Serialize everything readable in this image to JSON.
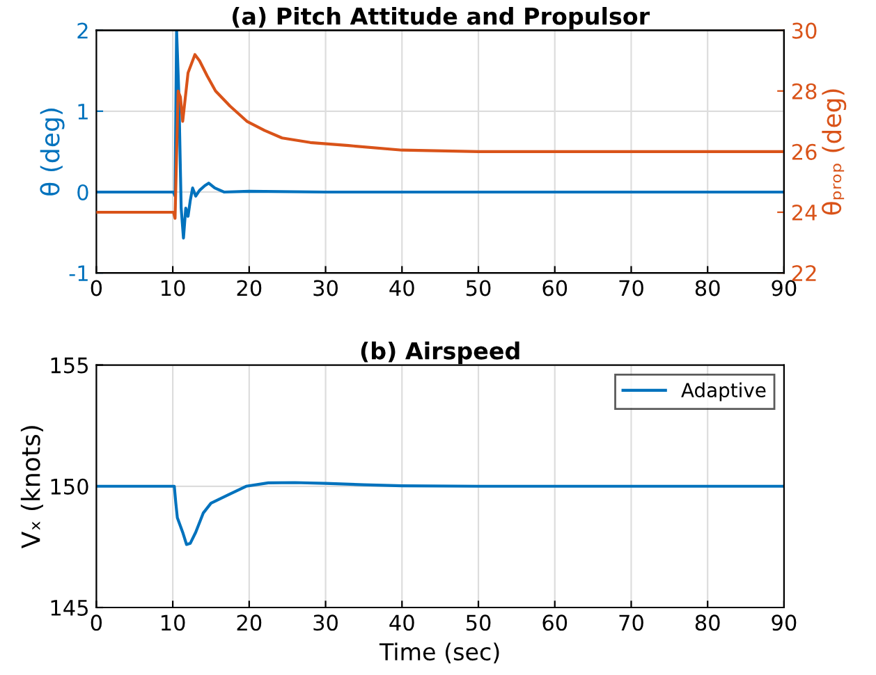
{
  "chart_data": [
    {
      "type": "line",
      "title": "(a) Pitch Attitude and Propulsor",
      "ylabel": "θ (deg)",
      "y2label": "θₚᵣₒₚ (deg)",
      "xlim": [
        0,
        90
      ],
      "xticks": [
        0,
        10,
        20,
        30,
        40,
        50,
        60,
        70,
        80,
        90
      ],
      "ylim": [
        -1,
        2
      ],
      "yticks": [
        -1,
        0,
        1,
        2
      ],
      "y2lim": [
        22,
        30
      ],
      "y2ticks": [
        22,
        24,
        26,
        28,
        30
      ],
      "grid": true,
      "legend": false,
      "series": [
        {
          "color": "#0072bd",
          "x": [
            0,
            10.1,
            10.3,
            10.5,
            10.8,
            11.1,
            11.4,
            11.7,
            12.0,
            12.3,
            12.6,
            13.0,
            13.5,
            14.2,
            14.7,
            15.5,
            16.7,
            20,
            30,
            90
          ],
          "values": [
            0,
            0,
            -0.05,
            2.0,
            1.2,
            -0.2,
            -0.57,
            -0.2,
            -0.3,
            -0.1,
            0.05,
            -0.05,
            0.02,
            0.08,
            0.11,
            0.05,
            0,
            0.01,
            0,
            0
          ]
        },
        {
          "color": "#d95319",
          "axis": "y2",
          "x": [
            0,
            10.1,
            10.3,
            10.7,
            11.0,
            11.3,
            12.0,
            12.9,
            13.5,
            14.5,
            15.6,
            17.5,
            19.7,
            22,
            24.3,
            28,
            33,
            40,
            50,
            90
          ],
          "values": [
            24.0,
            24.0,
            23.8,
            28.0,
            27.8,
            27.0,
            28.6,
            29.2,
            29.0,
            28.5,
            28.0,
            27.5,
            27.0,
            26.7,
            26.45,
            26.3,
            26.2,
            26.05,
            26.0,
            26.0
          ]
        }
      ]
    },
    {
      "type": "line",
      "title": "(b) Airspeed",
      "xlabel": "Time (sec)",
      "ylabel": "Vₓ (knots)",
      "xlim": [
        0,
        90
      ],
      "xticks": [
        0,
        10,
        20,
        30,
        40,
        50,
        60,
        70,
        80,
        90
      ],
      "ylim": [
        145,
        155
      ],
      "yticks": [
        145,
        150,
        155
      ],
      "grid": true,
      "legend": "top right",
      "series": [
        {
          "name": "Adaptive",
          "color": "#0072bd",
          "x": [
            0,
            10.2,
            10.4,
            10.6,
            11.3,
            11.8,
            12.3,
            13,
            14,
            15,
            17.3,
            19.6,
            22.5,
            26,
            30,
            35,
            40,
            50,
            90
          ],
          "values": [
            150,
            150,
            149.3,
            148.7,
            148.1,
            147.6,
            147.65,
            148.1,
            148.9,
            149.3,
            149.65,
            150,
            150.14,
            150.15,
            150.12,
            150.06,
            150.02,
            150,
            150
          ]
        }
      ]
    }
  ]
}
